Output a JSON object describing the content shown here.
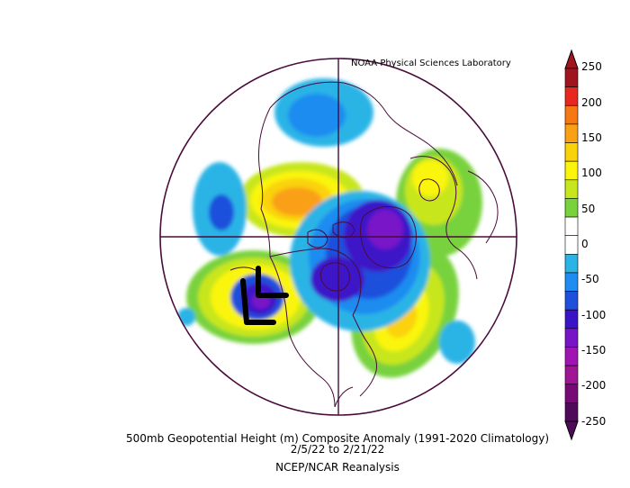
{
  "credit": "NOAA Physical Sciences Laboratory",
  "caption": {
    "line1": "500mb Geopotential Height (m) Composite Anomaly (1991-2020 Climatology)",
    "line2": "2/5/22  to 2/21/22",
    "line3": "NCEP/NCAR Reanalysis"
  },
  "colorbar": {
    "labels": [
      "250",
      "200",
      "150",
      "100",
      "50",
      "0",
      "-50",
      "-100",
      "-150",
      "-200",
      "-250"
    ],
    "colors": [
      "#a0141e",
      "#e8281e",
      "#f57814",
      "#faa014",
      "#fad20a",
      "#faf50a",
      "#c8e61e",
      "#78d23c",
      "#ffffff",
      "#ffffff",
      "#2ab4e6",
      "#1e8cf0",
      "#1e50dc",
      "#3c14c8",
      "#7814c8",
      "#a014b4",
      "#a01496",
      "#780a78",
      "#500a5a"
    ]
  },
  "annotation": {
    "symbol": "L",
    "color": "#000000"
  },
  "colors": {
    "border": "#4a0a3c"
  }
}
